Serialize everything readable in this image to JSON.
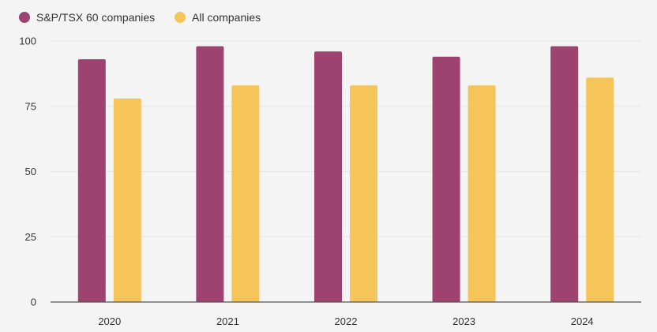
{
  "chart_data": {
    "type": "bar",
    "categories": [
      "2020",
      "2021",
      "2022",
      "2023",
      "2024"
    ],
    "series": [
      {
        "name": "S&P/TSX 60 companies",
        "color": "#9e4370",
        "values": [
          93,
          98,
          96,
          94,
          98
        ]
      },
      {
        "name": "All companies",
        "color": "#f5c55a",
        "values": [
          78,
          83,
          83,
          83,
          86
        ]
      }
    ],
    "ylim": [
      0,
      100
    ],
    "yticks": [
      "0",
      "25",
      "50",
      "75",
      "100"
    ],
    "grid": true,
    "legend_position": "top-left"
  }
}
